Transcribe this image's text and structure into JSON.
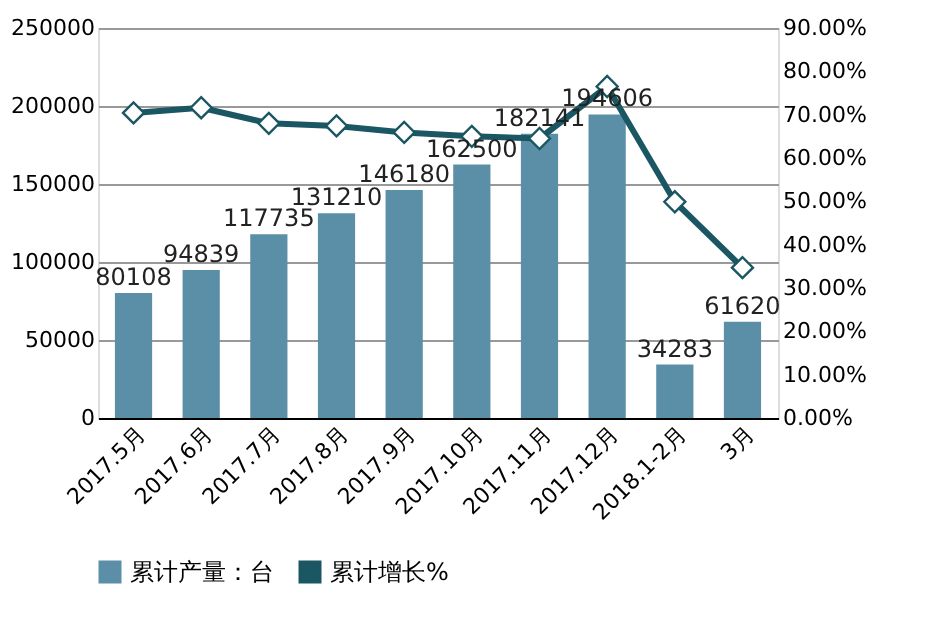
{
  "chart_data": {
    "type": "bar",
    "categories": [
      "2017.5月",
      "2017.6月",
      "2017.7月",
      "2017.8月",
      "2017.9月",
      "2017.10月",
      "2017.11月",
      "2017.12月",
      "2018.1-2月",
      "3月"
    ],
    "series": [
      {
        "name": "累计产量：台",
        "color": "#5b8fa8",
        "values": [
          80108,
          94839,
          117735,
          131210,
          146180,
          162500,
          182141,
          194606,
          34283,
          61620
        ],
        "value_labels": [
          "80108",
          "94839",
          "117735",
          "131210",
          "146180",
          "162500",
          "182141",
          "194606",
          "34283",
          "61620"
        ]
      },
      {
        "name": "累计增长%",
        "type": "line",
        "axis": "y2",
        "color": "#1b5663",
        "marker": "diamond",
        "values": [
          70.4,
          71.6,
          68.0,
          67.4,
          65.9,
          65.0,
          64.5,
          76.5,
          49.9,
          34.7
        ]
      }
    ],
    "ylim": [
      0,
      250000
    ],
    "yticks": [
      0,
      50000,
      100000,
      150000,
      200000,
      250000
    ],
    "y2lim": [
      0,
      90
    ],
    "y2ticks": [
      {
        "value": 0,
        "label": "0.00%"
      },
      {
        "value": 10,
        "label": "10.00%"
      },
      {
        "value": 20,
        "label": "20.00%"
      },
      {
        "value": 30,
        "label": "30.00%"
      },
      {
        "value": 40,
        "label": "40.00%"
      },
      {
        "value": 50,
        "label": "50.00%"
      },
      {
        "value": 60,
        "label": "60.00%"
      },
      {
        "value": 70,
        "label": "70.00%"
      },
      {
        "value": 80,
        "label": "80.00%"
      },
      {
        "value": 90,
        "label": "90.00%"
      }
    ],
    "grid": "y",
    "legend": "bottom"
  }
}
